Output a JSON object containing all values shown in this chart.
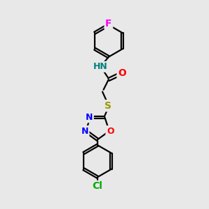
{
  "bg_color": "#E8E8E8",
  "bond_color": "#000000",
  "bond_width": 1.6,
  "atom_colors": {
    "F": "#FF00FF",
    "N": "#0000FF",
    "O": "#FF0000",
    "S": "#999900",
    "Cl": "#00AA00",
    "H": "#008080",
    "C": "#000000"
  },
  "font_size": 9,
  "fig_size": [
    3.0,
    3.0
  ],
  "dpi": 100
}
